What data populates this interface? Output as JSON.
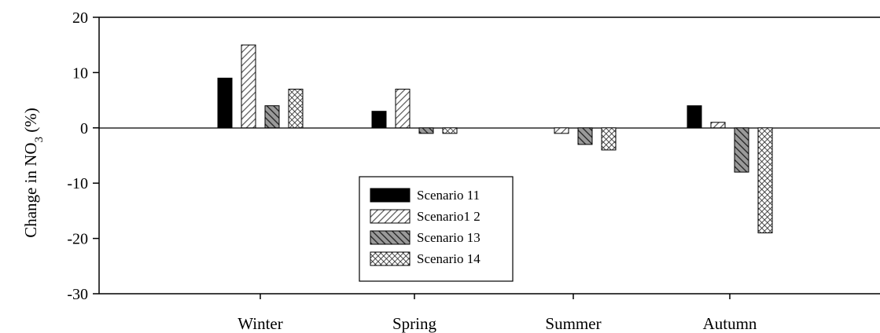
{
  "chart_data": {
    "type": "bar",
    "title": "",
    "xlabel": "",
    "ylabel": "Change in NO",
    "ylabel_sub": "3",
    "ylabel_suffix": " (%)",
    "categories": [
      "Winter",
      "Spring",
      "Summer",
      "Autumn"
    ],
    "ylim": [
      -30,
      20
    ],
    "yticks": [
      20,
      10,
      0,
      -10,
      -20,
      -30
    ],
    "grid": false,
    "legend_position": "center",
    "series": [
      {
        "name": "Scenario 11",
        "values": [
          9,
          3,
          0,
          4
        ],
        "fill": "solid",
        "color": "#000000"
      },
      {
        "name": "Scenario1 2",
        "values": [
          15,
          7,
          -1,
          1
        ],
        "fill": "light-diagonal",
        "color": "#b0b0b0"
      },
      {
        "name": "Scenario 13",
        "values": [
          4,
          -1,
          -3,
          -8
        ],
        "fill": "dark-diagonal",
        "color": "#606060"
      },
      {
        "name": "Scenario 14",
        "values": [
          7,
          -1,
          -4,
          -19
        ],
        "fill": "crosshatch",
        "color": "#ffffff"
      }
    ]
  }
}
